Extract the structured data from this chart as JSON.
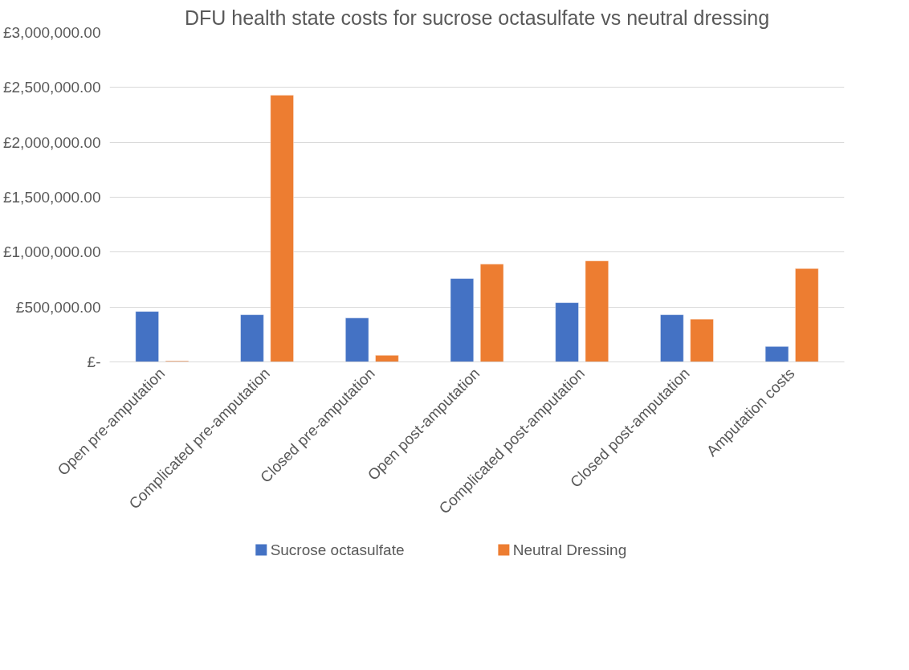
{
  "chart_data": {
    "type": "bar",
    "title": "DFU health state costs for sucrose octasulfate vs neutral dressing",
    "categories": [
      "Open pre-amputation",
      "Complicated pre-amputation",
      "Closed pre-amputation",
      "Open post-amputation",
      "Complicated post-amputation",
      "Closed post-amputation",
      "Amputation costs"
    ],
    "series": [
      {
        "name": "Sucrose octasulfate",
        "color": "#4472c4",
        "values": [
          460000,
          430000,
          400000,
          760000,
          540000,
          430000,
          140000
        ]
      },
      {
        "name": "Neutral Dressing",
        "color": "#ed7d31",
        "values": [
          10000,
          2430000,
          60000,
          890000,
          920000,
          390000,
          850000
        ]
      }
    ],
    "ylim": [
      0,
      3000000
    ],
    "yticks": [
      {
        "value": 0,
        "label": "£-"
      },
      {
        "value": 500000,
        "label": "£500,000.00"
      },
      {
        "value": 1000000,
        "label": "£1,000,000.00"
      },
      {
        "value": 1500000,
        "label": "£1,500,000.00"
      },
      {
        "value": 2000000,
        "label": "£2,000,000.00"
      },
      {
        "value": 2500000,
        "label": "£2,500,000.00"
      },
      {
        "value": 3000000,
        "label": "£3,000,000.00"
      }
    ],
    "grid": "y",
    "legend": "bottom"
  }
}
